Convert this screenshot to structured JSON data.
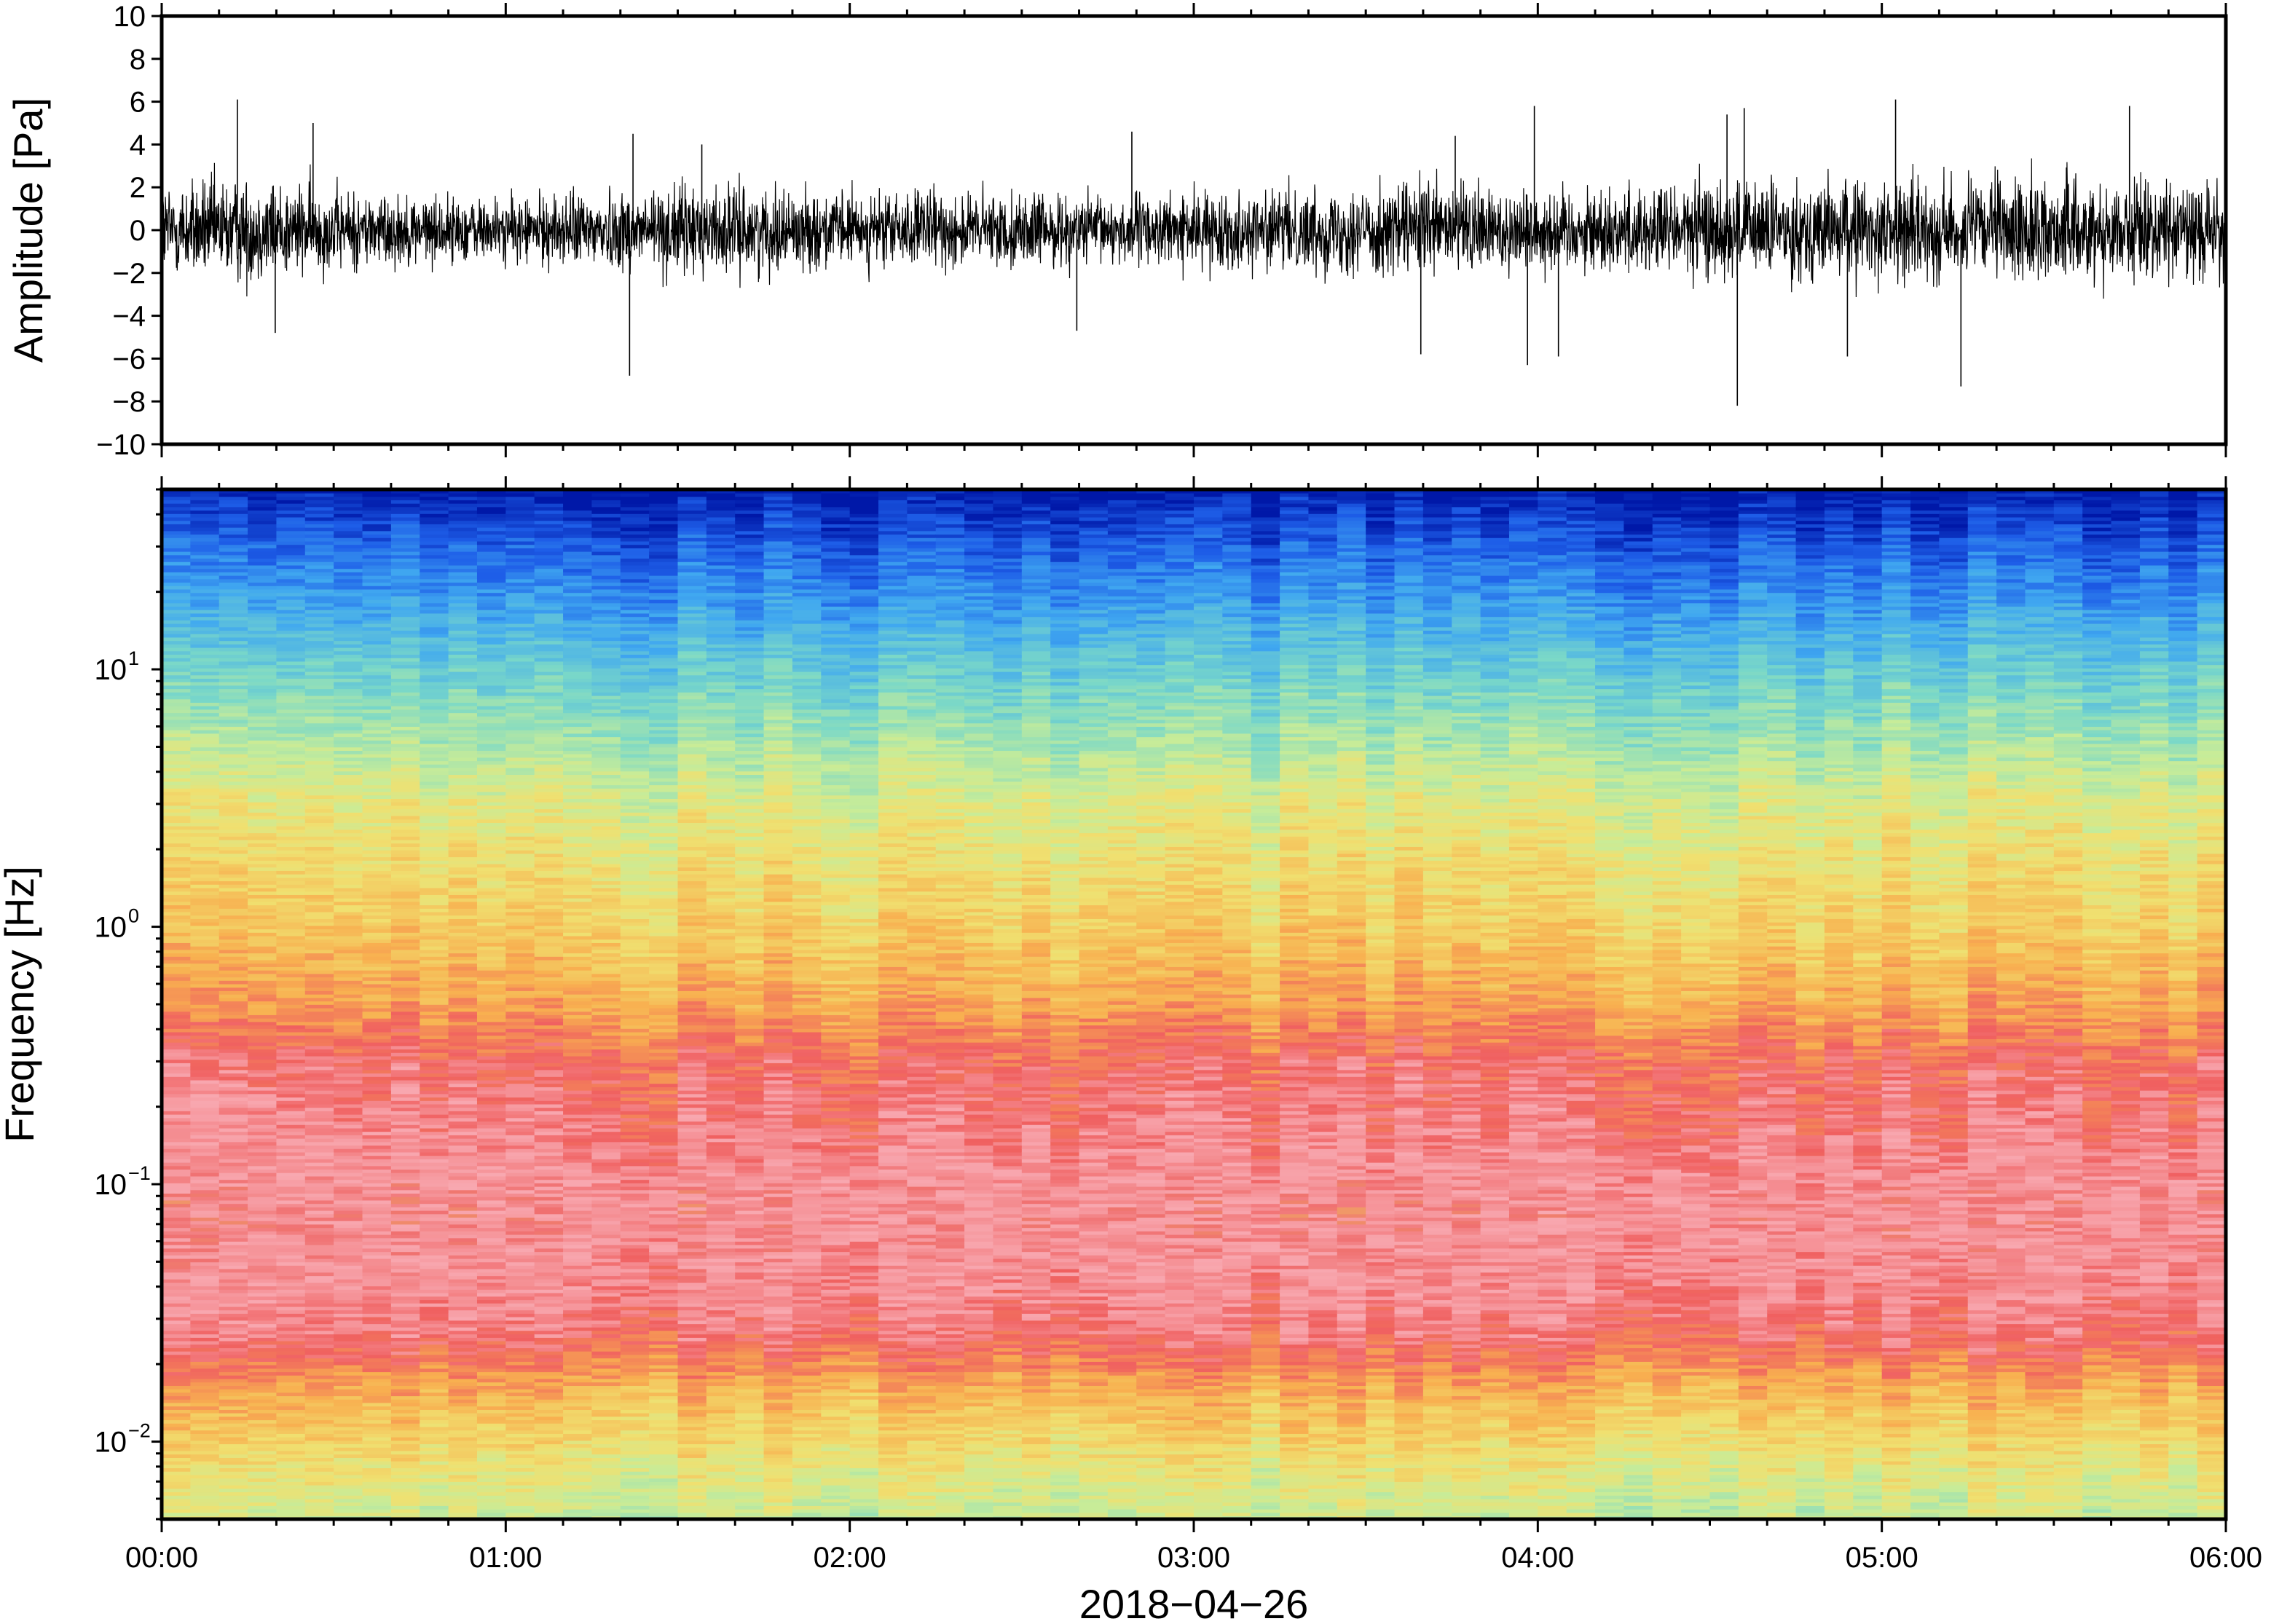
{
  "chart_data": [
    {
      "type": "line",
      "ylabel": "Amplitude [Pa]",
      "ylim": [
        -10,
        10
      ],
      "y_ticks": [
        {
          "value": 10,
          "label": "10"
        },
        {
          "value": 8,
          "label": "8"
        },
        {
          "value": 6,
          "label": "6"
        },
        {
          "value": 4,
          "label": "4"
        },
        {
          "value": 2,
          "label": "2"
        },
        {
          "value": 0,
          "label": "0"
        },
        {
          "value": -2,
          "label": "−2"
        },
        {
          "value": -4,
          "label": "−4"
        },
        {
          "value": -6,
          "label": "−6"
        },
        {
          "value": -8,
          "label": "−8"
        },
        {
          "value": -10,
          "label": "−10"
        }
      ],
      "xlim": [
        "00:00",
        "06:00"
      ],
      "envelope_time_hours": [
        0.0,
        0.25,
        0.5,
        0.75,
        1.0,
        1.25,
        1.5,
        1.75,
        2.0,
        2.25,
        2.5,
        2.75,
        3.0,
        3.25,
        3.5,
        3.75,
        4.0,
        4.25,
        4.5,
        4.75,
        5.0,
        5.25,
        5.5,
        5.75,
        6.0
      ],
      "envelope_amplitude_pa": [
        2.0,
        2.2,
        1.7,
        1.4,
        1.3,
        1.6,
        1.9,
        1.7,
        1.5,
        1.6,
        1.5,
        1.4,
        1.5,
        1.6,
        1.9,
        2.0,
        1.7,
        1.8,
        2.1,
        2.0,
        2.1,
        2.0,
        2.2,
        2.0,
        1.9
      ],
      "spikes": [
        {
          "t_hours": 0.22,
          "value": 6.1
        },
        {
          "t_hours": 0.33,
          "value": -4.8
        },
        {
          "t_hours": 0.44,
          "value": 5.0
        },
        {
          "t_hours": 1.36,
          "value": -6.8
        },
        {
          "t_hours": 1.37,
          "value": 4.5
        },
        {
          "t_hours": 1.57,
          "value": 4.0
        },
        {
          "t_hours": 2.66,
          "value": -4.7
        },
        {
          "t_hours": 2.82,
          "value": 4.6
        },
        {
          "t_hours": 3.66,
          "value": -5.8
        },
        {
          "t_hours": 3.76,
          "value": 4.4
        },
        {
          "t_hours": 3.97,
          "value": -6.3
        },
        {
          "t_hours": 3.99,
          "value": 5.8
        },
        {
          "t_hours": 4.06,
          "value": -5.9
        },
        {
          "t_hours": 4.55,
          "value": 5.4
        },
        {
          "t_hours": 4.58,
          "value": -8.2
        },
        {
          "t_hours": 4.6,
          "value": 5.7
        },
        {
          "t_hours": 4.9,
          "value": -5.9
        },
        {
          "t_hours": 5.04,
          "value": 6.1
        },
        {
          "t_hours": 5.23,
          "value": -7.3
        },
        {
          "t_hours": 5.72,
          "value": 5.8
        }
      ]
    },
    {
      "type": "heatmap",
      "ylabel": "Frequency [Hz]",
      "yscale": "log",
      "ylim_hz": [
        0.005,
        50
      ],
      "y_ticks": [
        {
          "value": 10,
          "base": "10",
          "exp": "1"
        },
        {
          "value": 1,
          "base": "10",
          "exp": "0"
        },
        {
          "value": 0.1,
          "base": "10",
          "exp": "−1"
        },
        {
          "value": 0.01,
          "base": "10",
          "exp": "−2"
        }
      ],
      "xlabel": "2018−04−26",
      "x_ticks": [
        "00:00",
        "01:00",
        "02:00",
        "03:00",
        "04:00",
        "05:00",
        "06:00"
      ],
      "colormap": [
        "#0018a8",
        "#1e5ee8",
        "#40a8f0",
        "#7ad8c8",
        "#c8ec98",
        "#f0e070",
        "#f8b050",
        "#f06060",
        "#f8a8b0",
        "#f07070",
        "#f0c060",
        "#80e4c0"
      ],
      "power_profile": [
        {
          "freq_hz": 50,
          "level": 0.0
        },
        {
          "freq_hz": 30,
          "level": 0.1
        },
        {
          "freq_hz": 15,
          "level": 0.22
        },
        {
          "freq_hz": 8,
          "level": 0.33
        },
        {
          "freq_hz": 3,
          "level": 0.48
        },
        {
          "freq_hz": 1,
          "level": 0.56
        },
        {
          "freq_hz": 0.5,
          "level": 0.63
        },
        {
          "freq_hz": 0.3,
          "level": 0.72
        },
        {
          "freq_hz": 0.15,
          "level": 0.76
        },
        {
          "freq_hz": 0.08,
          "level": 0.82
        },
        {
          "freq_hz": 0.04,
          "level": 0.78
        },
        {
          "freq_hz": 0.025,
          "level": 0.73
        },
        {
          "freq_hz": 0.015,
          "level": 0.6
        },
        {
          "freq_hz": 0.008,
          "level": 0.5
        },
        {
          "freq_hz": 0.005,
          "level": 0.44
        }
      ]
    }
  ]
}
